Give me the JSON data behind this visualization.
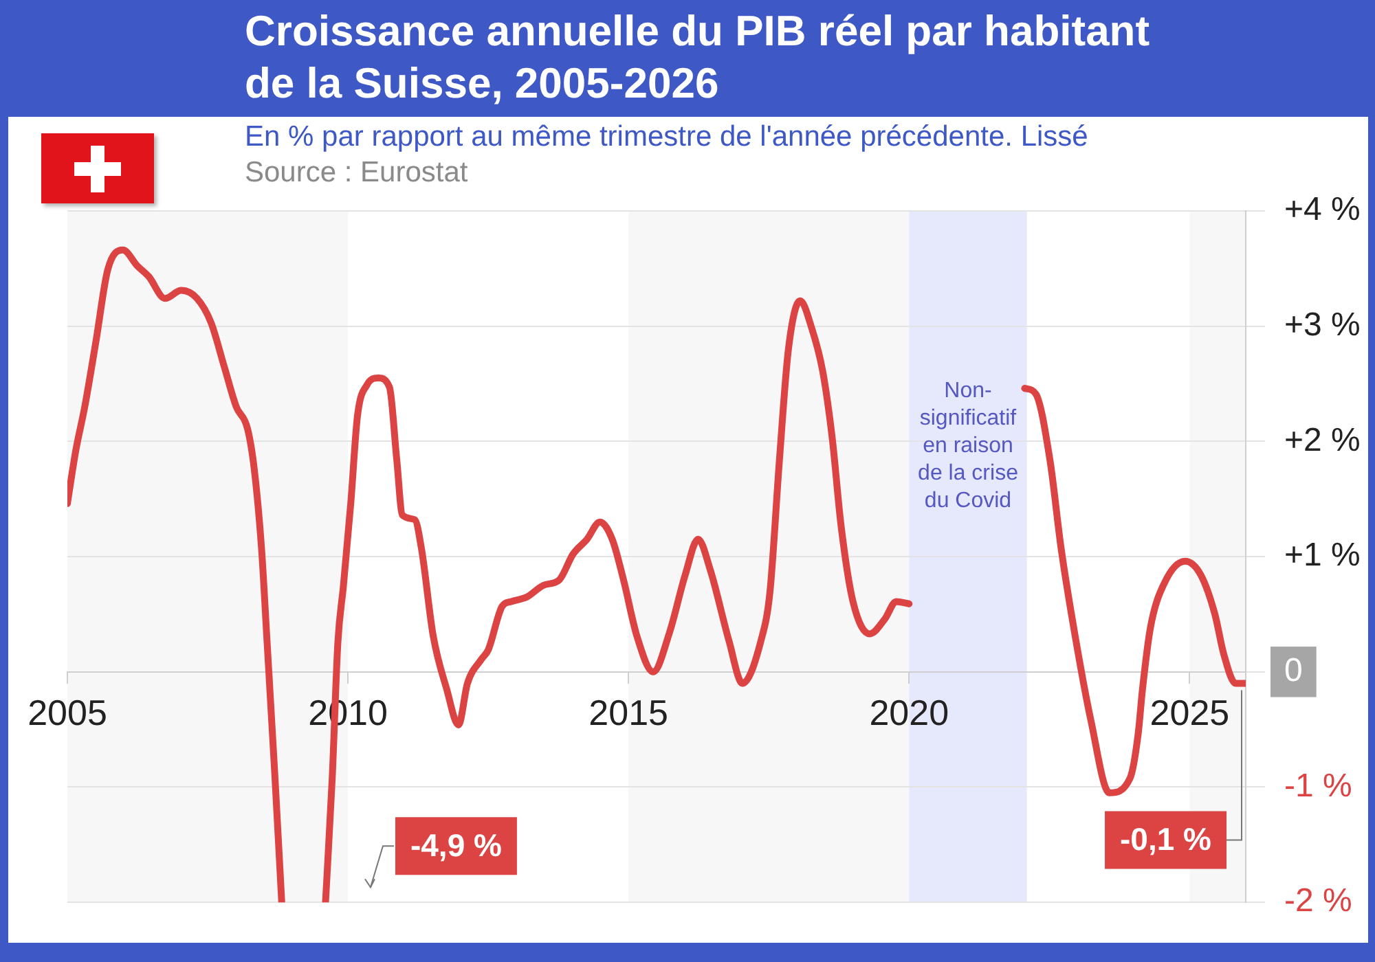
{
  "chart_data": {
    "type": "line",
    "title": "Croissance annuelle du PIB réel par habitant de la Suisse, 2005-2026",
    "subtitle": "En % par rapport au même trimestre de l'année précédente. Lissé",
    "annotations": [
      "Source : Eurostat",
      "-4,9 %",
      {
        "text": "-0,1 %",
        "x": 2026,
        "y": -0.1
      }
    ],
    "x": [
      2005,
      2005.15,
      2005.31,
      2005.51,
      2005.72,
      2005.99,
      2006.25,
      2006.45,
      2006.74,
      2007.03,
      2007.31,
      2007.56,
      2007.8,
      2008.01,
      2008.21,
      2008.33,
      2008.46,
      2008.56,
      2008.7,
      2008.82,
      2009.3,
      2009.6,
      2009.72,
      2009.82,
      2009.92,
      2010.05,
      2010.17,
      2010.34,
      2010.54,
      2010.74,
      2010.87,
      2010.97,
      2011.19,
      2011.31,
      2011.52,
      2011.76,
      2011.97,
      2012.13,
      2012.38,
      2012.5,
      2012.75,
      2012.91,
      2013.19,
      2013.48,
      2013.77,
      2014.01,
      2014.26,
      2014.49,
      2014.71,
      2014.91,
      2015.15,
      2015.44,
      2015.73,
      2016.01,
      2016.24,
      2016.46,
      2016.79,
      2017.03,
      2017.36,
      2017.52,
      2017.69,
      2017.85,
      2018.06,
      2018.26,
      2018.46,
      2018.63,
      2018.79,
      2019,
      2019.3,
      2019.57,
      2019.77,
      2020,
      2021,
      2022.06,
      2022.26,
      2022.51,
      2022.71,
      2022.96,
      2023.24,
      2023.57,
      2023.94,
      2024.08,
      2024.16,
      2024.3,
      2024.55,
      2024.92,
      2025.2,
      2025.45,
      2025.61,
      2025.82,
      2026
    ],
    "series": [
      {
        "color": "#dc4343",
        "values": [
          1.46,
          1.92,
          2.3,
          2.87,
          3.49,
          3.66,
          3.52,
          3.43,
          3.24,
          3.31,
          3.24,
          3.03,
          2.64,
          2.3,
          2.11,
          1.76,
          1.07,
          0.25,
          -0.92,
          -2,
          null,
          -2,
          -0.92,
          0.25,
          0.75,
          1.46,
          2.22,
          2.49,
          2.55,
          2.47,
          1.84,
          1.36,
          1.32,
          1.07,
          0.31,
          -0.15,
          -0.46,
          -0.1,
          0.11,
          0.19,
          0.57,
          0.61,
          0.65,
          0.75,
          0.8,
          1.02,
          1.15,
          1.3,
          1.15,
          0.8,
          0.31,
          0,
          0.34,
          0.84,
          1.15,
          0.88,
          0.27,
          -0.1,
          0.27,
          0.69,
          1.84,
          2.8,
          3.22,
          2.99,
          2.61,
          2.03,
          1.26,
          0.61,
          0.33,
          0.46,
          0.61,
          0.59,
          null,
          2.46,
          2.41,
          1.84,
          1.07,
          0.31,
          -0.42,
          -1.05,
          -0.92,
          -0.55,
          -0.15,
          0.38,
          0.77,
          0.96,
          0.84,
          0.5,
          0.15,
          -0.1,
          -0.1
        ]
      }
    ],
    "xlim": [
      2005,
      2026
    ],
    "xticks": [
      2005,
      2010,
      2015,
      2020,
      2025
    ],
    "ylim": [
      -2,
      4
    ],
    "yticks": [
      {
        "value": 4,
        "label": "+4 %"
      },
      {
        "value": 3,
        "label": "+3 %"
      },
      {
        "value": 2,
        "label": "+2 %"
      },
      {
        "value": 1,
        "label": "+1 %"
      },
      {
        "value": 0,
        "label": "0"
      },
      {
        "value": -1,
        "label": "-1 %"
      },
      {
        "value": -2,
        "label": "-2 %"
      }
    ],
    "grid": "y",
    "bands": [
      {
        "axis": "x",
        "from": 2005,
        "to": 2010,
        "color": "#f7f7f7"
      },
      {
        "axis": "x",
        "from": 2015,
        "to": 2020,
        "color": "#f7f7f7"
      },
      {
        "axis": "x",
        "from": 2025,
        "to": 2026,
        "color": "#f7f7f7"
      },
      {
        "axis": "x",
        "from": 2020,
        "to": 2022.1,
        "color": "#e6e8fb",
        "label": "Non-significatif en raison de la crise du Covid"
      }
    ]
  }
}
